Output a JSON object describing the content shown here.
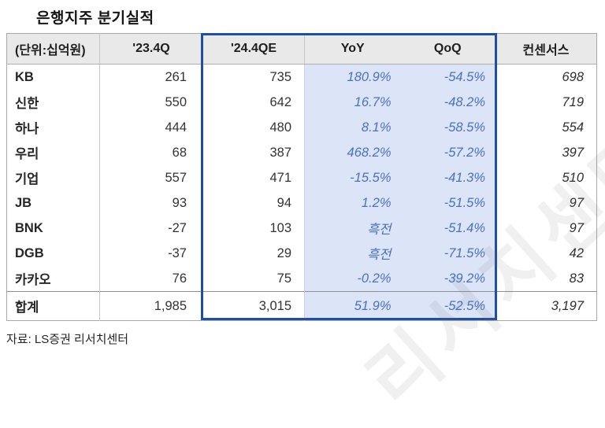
{
  "title": "은행지주 분기실적",
  "source": "자료: LS증권 리서치센터",
  "watermark": "리서치센터",
  "colors": {
    "header_bg": "#e9e9e9",
    "highlight_border": "#1f4fa5",
    "highlight_cell_bg": "#dbe5f7",
    "percent_text": "#4a70c6",
    "body_text": "#2e2e2e",
    "grid_line": "#c9c9c9"
  },
  "table": {
    "headers": [
      "(단위:십억원)",
      "'23.4Q",
      "'24.4QE",
      "YoY",
      "QoQ",
      "컨센서스"
    ],
    "rows": [
      {
        "label": "KB",
        "q23": "261",
        "q24e": "735",
        "yoy": "180.9%",
        "qoq": "-54.5%",
        "consensus": "698"
      },
      {
        "label": "신한",
        "q23": "550",
        "q24e": "642",
        "yoy": "16.7%",
        "qoq": "-48.2%",
        "consensus": "719"
      },
      {
        "label": "하나",
        "q23": "444",
        "q24e": "480",
        "yoy": "8.1%",
        "qoq": "-58.5%",
        "consensus": "554"
      },
      {
        "label": "우리",
        "q23": "68",
        "q24e": "387",
        "yoy": "468.2%",
        "qoq": "-57.2%",
        "consensus": "397"
      },
      {
        "label": "기업",
        "q23": "557",
        "q24e": "471",
        "yoy": "-15.5%",
        "qoq": "-41.3%",
        "consensus": "510"
      },
      {
        "label": "JB",
        "q23": "93",
        "q24e": "94",
        "yoy": "1.2%",
        "qoq": "-51.5%",
        "consensus": "97"
      },
      {
        "label": "BNK",
        "q23": "-27",
        "q24e": "103",
        "yoy": "흑전",
        "qoq": "-51.4%",
        "consensus": "97"
      },
      {
        "label": "DGB",
        "q23": "-37",
        "q24e": "29",
        "yoy": "흑전",
        "qoq": "-71.5%",
        "consensus": "42"
      },
      {
        "label": "카카오",
        "q23": "76",
        "q24e": "75",
        "yoy": "-0.2%",
        "qoq": "-39.2%",
        "consensus": "83"
      }
    ],
    "total": {
      "label": "합계",
      "q23": "1,985",
      "q24e": "3,015",
      "yoy": "51.9%",
      "qoq": "-52.5%",
      "consensus": "3,197"
    }
  }
}
